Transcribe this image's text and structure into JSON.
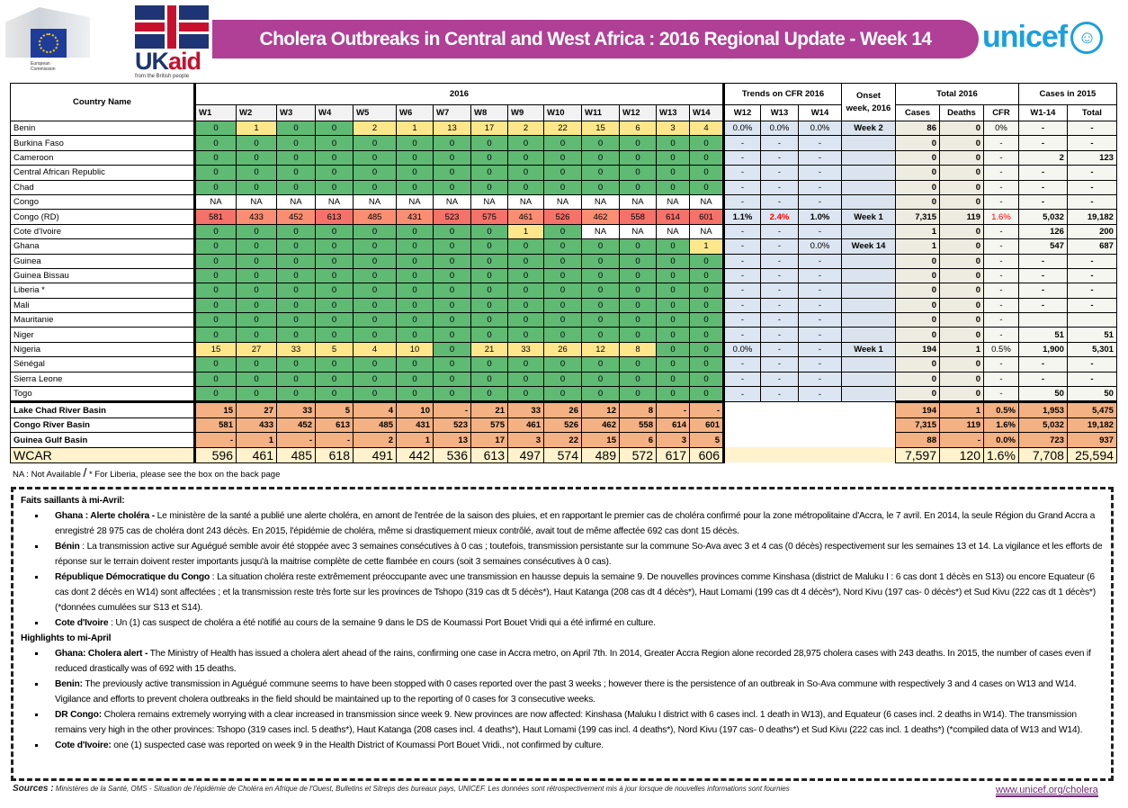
{
  "header": {
    "eu_logo_text": "European Commission",
    "ukaid_logo_text": "UKaid from the British people",
    "title": "Cholera Outbreaks in Central and West Africa : 2016 Regional Update -  Week 14",
    "unicef_logo_text": "unicef"
  },
  "colors": {
    "banner": "#b03f96",
    "zero": "#5fba73",
    "low": "#fde78a",
    "high": "#f4726a",
    "mid": "#f98e73",
    "na": "#ffffff",
    "basin": "#f4b183",
    "wcar": "#fff2cc",
    "trend": "#dce6f2",
    "onset": "#dbe4ee",
    "total2016": "#eeece1",
    "cases2015": "#f6f6f0",
    "alert": "#ff0000",
    "unicef": "#1ca0dd"
  },
  "table": {
    "country_header": "Country Name",
    "year_header": "2016",
    "weeks": [
      "W1",
      "W2",
      "W3",
      "W4",
      "W5",
      "W6",
      "W7",
      "W8",
      "W9",
      "W10",
      "W11",
      "W12",
      "W13",
      "W14"
    ],
    "trends_header": "Trends on CFR 2016",
    "trend_weeks": [
      "W12",
      "W13",
      "W14"
    ],
    "onset_header": "Onset week, 2016",
    "total_header": "Total 2016",
    "total_cols": [
      "Cases",
      "Deaths",
      "CFR"
    ],
    "cases2015_header": "Cases in 2015",
    "cases2015_cols": [
      "W1-14",
      "Total"
    ],
    "countries": [
      {
        "name": "Benin",
        "w": [
          "0",
          "1",
          "0",
          "0",
          "2",
          "1",
          "13",
          "17",
          "2",
          "22",
          "15",
          "6",
          "3",
          "4"
        ],
        "trends": [
          "0.0%",
          "0.0%",
          "0.0%"
        ],
        "onset": "Week 2",
        "cases": "86",
        "deaths": "0",
        "cfr": "0%",
        "w1_14": "-",
        "total": "-"
      },
      {
        "name": "Burkina Faso",
        "w": [
          "0",
          "0",
          "0",
          "0",
          "0",
          "0",
          "0",
          "0",
          "0",
          "0",
          "0",
          "0",
          "0",
          "0"
        ],
        "trends": [
          "-",
          "-",
          "-"
        ],
        "onset": "",
        "cases": "0",
        "deaths": "0",
        "cfr": "-",
        "w1_14": "-",
        "total": "-"
      },
      {
        "name": "Cameroon",
        "w": [
          "0",
          "0",
          "0",
          "0",
          "0",
          "0",
          "0",
          "0",
          "0",
          "0",
          "0",
          "0",
          "0",
          "0"
        ],
        "trends": [
          "-",
          "-",
          "-"
        ],
        "onset": "",
        "cases": "0",
        "deaths": "0",
        "cfr": "-",
        "w1_14": "2",
        "total": "123"
      },
      {
        "name": "Central African Republic",
        "w": [
          "0",
          "0",
          "0",
          "0",
          "0",
          "0",
          "0",
          "0",
          "0",
          "0",
          "0",
          "0",
          "0",
          "0"
        ],
        "trends": [
          "-",
          "-",
          "-"
        ],
        "onset": "",
        "cases": "0",
        "deaths": "0",
        "cfr": "-",
        "w1_14": "-",
        "total": "-"
      },
      {
        "name": "Chad",
        "w": [
          "0",
          "0",
          "0",
          "0",
          "0",
          "0",
          "0",
          "0",
          "0",
          "0",
          "0",
          "0",
          "0",
          "0"
        ],
        "trends": [
          "-",
          "-",
          "-"
        ],
        "onset": "",
        "cases": "0",
        "deaths": "0",
        "cfr": "-",
        "w1_14": "-",
        "total": "-"
      },
      {
        "name": "Congo",
        "w": [
          "NA",
          "NA",
          "NA",
          "NA",
          "NA",
          "NA",
          "NA",
          "NA",
          "NA",
          "NA",
          "NA",
          "NA",
          "NA",
          "NA"
        ],
        "trends": [
          "-",
          "-",
          "-"
        ],
        "onset": "",
        "cases": "0",
        "deaths": "0",
        "cfr": "-",
        "w1_14": "-",
        "total": "-"
      },
      {
        "name": "Congo (RD)",
        "w": [
          "581",
          "433",
          "452",
          "613",
          "485",
          "431",
          "523",
          "575",
          "461",
          "526",
          "462",
          "558",
          "614",
          "601"
        ],
        "trends": [
          "1.1%",
          "2.4%",
          "1.0%"
        ],
        "onset": "Week 1",
        "cases": "7,315",
        "deaths": "119",
        "cfr": "1.6%",
        "w1_14": "5,032",
        "total": "19,182",
        "alert": [
          "trend1",
          "cfr"
        ]
      },
      {
        "name": "Cote d'Ivoire",
        "w": [
          "0",
          "0",
          "0",
          "0",
          "0",
          "0",
          "0",
          "0",
          "1",
          "0",
          "NA",
          "NA",
          "NA",
          "NA"
        ],
        "trends": [
          "-",
          "-",
          "-"
        ],
        "onset": "",
        "cases": "1",
        "deaths": "0",
        "cfr": "-",
        "w1_14": "126",
        "total": "200"
      },
      {
        "name": "Ghana",
        "w": [
          "0",
          "0",
          "0",
          "0",
          "0",
          "0",
          "0",
          "0",
          "0",
          "0",
          "0",
          "0",
          "0",
          "1"
        ],
        "trends": [
          "-",
          "-",
          "0.0%"
        ],
        "onset": "Week 14",
        "cases": "1",
        "deaths": "0",
        "cfr": "-",
        "w1_14": "547",
        "total": "687"
      },
      {
        "name": "Guinea",
        "w": [
          "0",
          "0",
          "0",
          "0",
          "0",
          "0",
          "0",
          "0",
          "0",
          "0",
          "0",
          "0",
          "0",
          "0"
        ],
        "trends": [
          "-",
          "-",
          "-"
        ],
        "onset": "",
        "cases": "0",
        "deaths": "0",
        "cfr": "-",
        "w1_14": "-",
        "total": "-"
      },
      {
        "name": "Guinea Bissau",
        "w": [
          "0",
          "0",
          "0",
          "0",
          "0",
          "0",
          "0",
          "0",
          "0",
          "0",
          "0",
          "0",
          "0",
          "0"
        ],
        "trends": [
          "-",
          "-",
          "-"
        ],
        "onset": "",
        "cases": "0",
        "deaths": "0",
        "cfr": "-",
        "w1_14": "-",
        "total": "-"
      },
      {
        "name": "Liberia *",
        "w": [
          "0",
          "0",
          "0",
          "0",
          "0",
          "0",
          "0",
          "0",
          "0",
          "0",
          "0",
          "0",
          "0",
          "0"
        ],
        "trends": [
          "-",
          "-",
          "-"
        ],
        "onset": "",
        "cases": "0",
        "deaths": "0",
        "cfr": "-",
        "w1_14": "-",
        "total": "-"
      },
      {
        "name": "Mali",
        "w": [
          "0",
          "0",
          "0",
          "0",
          "0",
          "0",
          "0",
          "0",
          "0",
          "0",
          "0",
          "0",
          "0",
          "0"
        ],
        "trends": [
          "-",
          "-",
          "-"
        ],
        "onset": "",
        "cases": "0",
        "deaths": "0",
        "cfr": "-",
        "w1_14": "-",
        "total": "-"
      },
      {
        "name": "Mauritanie",
        "w": [
          "0",
          "0",
          "0",
          "0",
          "0",
          "0",
          "0",
          "0",
          "0",
          "0",
          "0",
          "0",
          "0",
          "0"
        ],
        "trends": [
          "-",
          "-",
          "-"
        ],
        "onset": "",
        "cases": "0",
        "deaths": "0",
        "cfr": "-",
        "w1_14": "",
        "total": ""
      },
      {
        "name": "Niger",
        "w": [
          "0",
          "0",
          "0",
          "0",
          "0",
          "0",
          "0",
          "0",
          "0",
          "0",
          "0",
          "0",
          "0",
          "0"
        ],
        "trends": [
          "-",
          "-",
          "-"
        ],
        "onset": "",
        "cases": "0",
        "deaths": "0",
        "cfr": "-",
        "w1_14": "51",
        "total": "51"
      },
      {
        "name": "Nigeria",
        "w": [
          "15",
          "27",
          "33",
          "5",
          "4",
          "10",
          "0",
          "21",
          "33",
          "26",
          "12",
          "8",
          "0",
          "0"
        ],
        "trends": [
          "0.0%",
          "-",
          "-"
        ],
        "onset": "Week 1",
        "cases": "194",
        "deaths": "1",
        "cfr": "0.5%",
        "w1_14": "1,900",
        "total": "5,301"
      },
      {
        "name": "Sénégal",
        "w": [
          "0",
          "0",
          "0",
          "0",
          "0",
          "0",
          "0",
          "0",
          "0",
          "0",
          "0",
          "0",
          "0",
          "0"
        ],
        "trends": [
          "-",
          "-",
          "-"
        ],
        "onset": "",
        "cases": "0",
        "deaths": "0",
        "cfr": "-",
        "w1_14": "-",
        "total": "-"
      },
      {
        "name": "Sierra Leone",
        "w": [
          "0",
          "0",
          "0",
          "0",
          "0",
          "0",
          "0",
          "0",
          "0",
          "0",
          "0",
          "0",
          "0",
          "0"
        ],
        "trends": [
          "-",
          "-",
          "-"
        ],
        "onset": "",
        "cases": "0",
        "deaths": "0",
        "cfr": "-",
        "w1_14": "-",
        "total": "-"
      },
      {
        "name": "Togo",
        "w": [
          "0",
          "0",
          "0",
          "0",
          "0",
          "0",
          "0",
          "0",
          "0",
          "0",
          "0",
          "0",
          "0",
          "0"
        ],
        "trends": [
          "-",
          "-",
          "-"
        ],
        "onset": "",
        "cases": "0",
        "deaths": "0",
        "cfr": "-",
        "w1_14": "50",
        "total": "50"
      }
    ],
    "basins": [
      {
        "name": "Lake Chad River Basin",
        "w": [
          "15",
          "27",
          "33",
          "5",
          "4",
          "10",
          "-",
          "21",
          "33",
          "26",
          "12",
          "8",
          "-",
          "-"
        ],
        "cases": "194",
        "deaths": "1",
        "cfr": "0.5%",
        "w1_14": "1,953",
        "total": "5,475"
      },
      {
        "name": "Congo River Basin",
        "w": [
          "581",
          "433",
          "452",
          "613",
          "485",
          "431",
          "523",
          "575",
          "461",
          "526",
          "462",
          "558",
          "614",
          "601"
        ],
        "cases": "7,315",
        "deaths": "119",
        "cfr": "1.6%",
        "w1_14": "5,032",
        "total": "19,182"
      },
      {
        "name": "Guinea Gulf Basin",
        "w": [
          "-",
          "1",
          "-",
          "-",
          "2",
          "1",
          "13",
          "17",
          "3",
          "22",
          "15",
          "6",
          "3",
          "5"
        ],
        "cases": "88",
        "deaths": "-",
        "cfr": "0.0%",
        "w1_14": "723",
        "total": "937"
      }
    ],
    "wcar": {
      "name": "WCAR",
      "w": [
        "596",
        "461",
        "485",
        "618",
        "491",
        "442",
        "536",
        "613",
        "497",
        "574",
        "489",
        "572",
        "617",
        "606"
      ],
      "cases": "7,597",
      "deaths": "120",
      "cfr": "1.6%",
      "w1_14": "7,708",
      "total": "25,594"
    }
  },
  "footnote": {
    "na": "NA : Not Available",
    "slash": "/",
    "liberia": "* For Liberia, please see the box on the back page"
  },
  "highlights_fr": {
    "title": "Faits saillants à mi-Avril:",
    "items": [
      {
        "lead": "Ghana : Alerte choléra -",
        "text": " Le ministère de la santé a publié une alerte choléra, en amont de l'entrée de la saison des pluies, et en rapportant le premier cas de choléra confirmé pour la zone métropolitaine d'Accra, le 7 avril. En 2014, la seule Région du Grand Accra a enregistré 28 975 cas de choléra dont 243 décès. En 2015, l'épidémie de choléra, même si drastiquement mieux contrôlé, avait tout de même affectée 692 cas dont 15 décès."
      },
      {
        "lead": "Bénin",
        "text": " : La transmission active sur Aguégué semble avoir été stoppée avec 3 semaines consécutives à 0 cas ; toutefois, transmission persistante sur la commune So-Ava avec 3 et 4 cas (0 décès) respectivement sur les semaines 13 et 14. La vigilance et les efforts de réponse sur le terrain doivent rester importants jusqu'à la maitrise complète de cette flambée en cours (soit 3 semaines consécutives à 0 cas)."
      },
      {
        "lead": "République Démocratique du Congo",
        "text": " : La situation choléra reste extrêmement préoccupante avec une transmission en hausse depuis la semaine 9. De nouvelles provinces comme Kinshasa (district de Maluku I : 6 cas dont 1 décès en S13) ou encore Equateur (6 cas dont 2 décès en W14) sont affectées ; et la transmission reste très forte sur les provinces de Tshopo (319 cas dt 5 décès*), Haut Katanga (208 cas dt 4 décès*), Haut Lomami (199 cas dt 4 décès*), Nord Kivu (197 cas- 0 décès*) et Sud Kivu (222 cas dt 1 décès*) (*données cumulées sur S13 et S14)."
      },
      {
        "lead": "Cote d'Ivoire",
        "text": " : Un (1) cas suspect de choléra a été notifié au cours de la semaine 9 dans le DS de Koumassi Port Bouet Vridi qui a été infirmé en culture."
      }
    ]
  },
  "highlights_en": {
    "title": "Highlights to mi-April",
    "items": [
      {
        "lead": "Ghana: Cholera alert -",
        "text": " The Ministry of Health has issued a cholera alert ahead of the rains, confirming one case in Accra metro, on April 7th. In 2014, Greater Accra Region alone recorded 28,975 cholera cases with 243 deaths. In 2015, the number of cases even if reduced drastically was of 692 with 15 deaths."
      },
      {
        "lead": "Benin:",
        "text": " The previously active transmission in Aguégué commune seems to have been stopped with 0 cases reported over the past 3 weeks ; however there is the persistence of an outbreak in So-Ava commune with respectively 3 and 4 cases on W13 and W14. Vigilance and efforts to prevent cholera outbreaks  in the field should be maintained up to the reporting of 0 cases for 3 consecutive weeks."
      },
      {
        "lead": "DR Congo:",
        "text": " Cholera remains extremely worrying with a clear increased in transmission since week 9. New provinces are now affected: Kinshasa (Maluku I district with 6 cases incl. 1 death in W13), and Equateur (6 cases incl. 2 deaths in W14). The transmission remains very high in the other provinces: Tshopo (319 cases incl. 5 deaths*), Haut Katanga (208 cases incl. 4 deaths*), Haut Lomami (199 cas incl. 4 deaths*), Nord Kivu (197 cas- 0 deaths*) et Sud Kivu (222 cas incl. 1 deaths*) (*compiled data of W13 and W14)."
      },
      {
        "lead": "Cote d'Ivoire:",
        "text": " one (1) suspected case was reported on week 9 in the Health District of Koumassi Port Bouet Vridi., not confirmed by culture."
      }
    ]
  },
  "sources": {
    "label": "Sources :",
    "text": " Ministères de la Santé, OMS - Situation de l'épidémie de Choléra en Afrique de l'Ouest, Bulletins et  Sitreps des bureaux pays,  UNICEF. Les données sont rétrospectivement mis à jour lorsque de nouvelles informations sont fournies"
  },
  "link": "www.unicef.org/cholera"
}
